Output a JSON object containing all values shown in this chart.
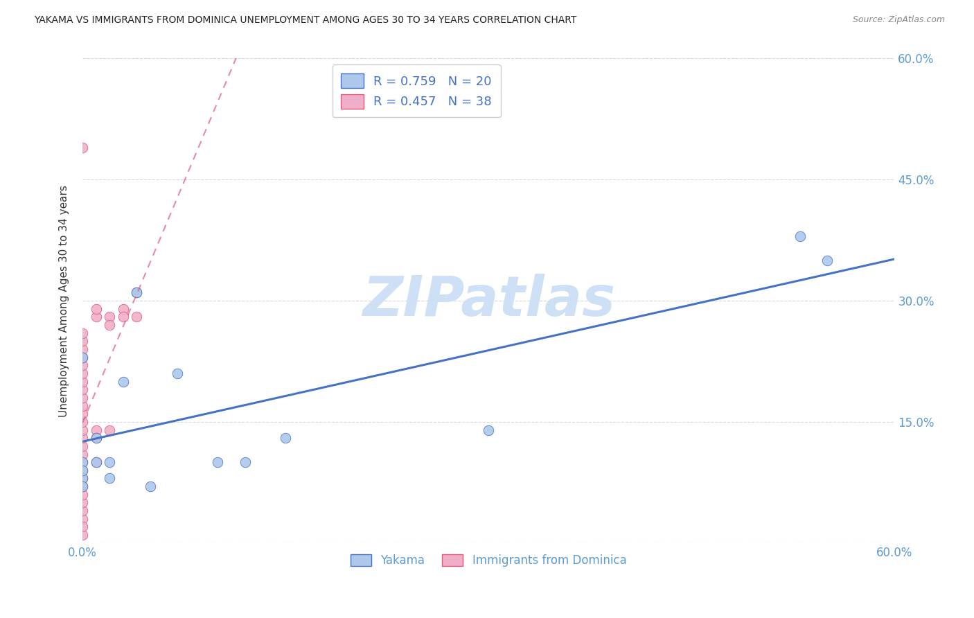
{
  "title": "YAKAMA VS IMMIGRANTS FROM DOMINICA UNEMPLOYMENT AMONG AGES 30 TO 34 YEARS CORRELATION CHART",
  "source": "Source: ZipAtlas.com",
  "ylabel": "Unemployment Among Ages 30 to 34 years",
  "xlim": [
    0.0,
    0.6
  ],
  "ylim": [
    0.0,
    0.6
  ],
  "watermark": "ZIPatlas",
  "yakama_scatter": [
    [
      0.0,
      0.23
    ],
    [
      0.0,
      0.08
    ],
    [
      0.0,
      0.1
    ],
    [
      0.0,
      0.09
    ],
    [
      0.0,
      0.07
    ],
    [
      0.01,
      0.13
    ],
    [
      0.01,
      0.1
    ],
    [
      0.02,
      0.1
    ],
    [
      0.02,
      0.08
    ],
    [
      0.03,
      0.2
    ],
    [
      0.04,
      0.31
    ],
    [
      0.04,
      0.31
    ],
    [
      0.05,
      0.07
    ],
    [
      0.07,
      0.21
    ],
    [
      0.1,
      0.1
    ],
    [
      0.12,
      0.1
    ],
    [
      0.15,
      0.13
    ],
    [
      0.3,
      0.14
    ],
    [
      0.53,
      0.38
    ],
    [
      0.55,
      0.35
    ]
  ],
  "dominica_scatter": [
    [
      0.0,
      0.49
    ],
    [
      0.0,
      0.03
    ],
    [
      0.0,
      0.04
    ],
    [
      0.0,
      0.05
    ],
    [
      0.0,
      0.06
    ],
    [
      0.0,
      0.07
    ],
    [
      0.0,
      0.08
    ],
    [
      0.0,
      0.09
    ],
    [
      0.0,
      0.1
    ],
    [
      0.0,
      0.11
    ],
    [
      0.0,
      0.12
    ],
    [
      0.0,
      0.01
    ],
    [
      0.0,
      0.02
    ],
    [
      0.0,
      0.13
    ],
    [
      0.0,
      0.14
    ],
    [
      0.0,
      0.15
    ],
    [
      0.0,
      0.16
    ],
    [
      0.0,
      0.17
    ],
    [
      0.0,
      0.18
    ],
    [
      0.0,
      0.19
    ],
    [
      0.0,
      0.2
    ],
    [
      0.0,
      0.21
    ],
    [
      0.0,
      0.22
    ],
    [
      0.0,
      0.23
    ],
    [
      0.0,
      0.24
    ],
    [
      0.0,
      0.25
    ],
    [
      0.0,
      0.26
    ],
    [
      0.01,
      0.14
    ],
    [
      0.01,
      0.28
    ],
    [
      0.01,
      0.29
    ],
    [
      0.01,
      0.1
    ],
    [
      0.02,
      0.28
    ],
    [
      0.02,
      0.27
    ],
    [
      0.03,
      0.29
    ],
    [
      0.03,
      0.28
    ],
    [
      0.04,
      0.28
    ],
    [
      0.01,
      0.13
    ],
    [
      0.02,
      0.14
    ]
  ],
  "yakama_color": "#adc8ea",
  "dominica_color": "#f0afc8",
  "yakama_line_color": "#4472c4",
  "dominica_line_color": "#e05878",
  "background_color": "#ffffff",
  "grid_color": "#d8d8d8",
  "title_color": "#222222",
  "source_color": "#888888",
  "axis_label_color": "#333333",
  "tick_color": "#5b9bd5",
  "legend_border_color": "#cccccc",
  "watermark_color": "#cee0f5"
}
